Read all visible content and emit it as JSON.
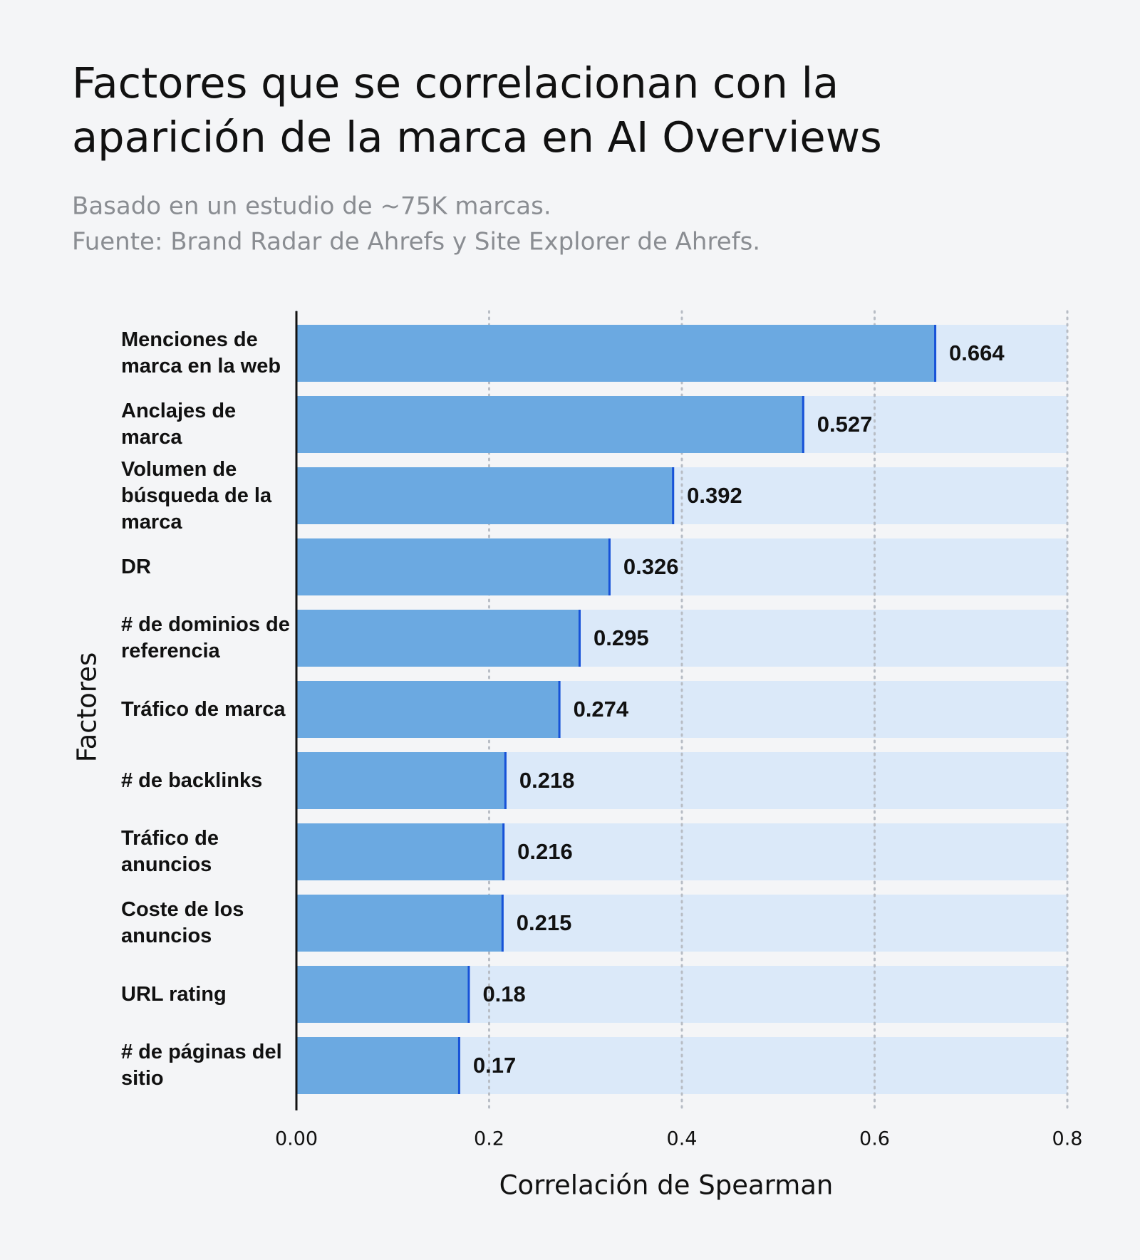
{
  "chart_data": {
    "type": "barh",
    "title": [
      "Factores que se correlacionan con la",
      "aparición de la marca en AI Overviews"
    ],
    "subtitle": [
      "Basado en un estudio de ~75K marcas.",
      "Fuente: Brand Radar de Ahrefs y Site Explorer de Ahrefs."
    ],
    "xlabel": "Correlación de Spearman",
    "ylabel": "Factores",
    "categories": [
      "Menciones de marca en la web",
      "Anclajes de marca",
      "Volumen de búsqueda de la marca",
      "DR",
      "# de dominios de referencia",
      "Tráfico de marca",
      "# de backlinks",
      "Tráfico de anuncios",
      "Coste de los anuncios",
      "URL rating",
      "# de páginas del sitio"
    ],
    "values": [
      0.664,
      0.527,
      0.392,
      0.326,
      0.295,
      0.274,
      0.218,
      0.216,
      0.215,
      0.18,
      0.17
    ],
    "color": "#6ba9e1",
    "track_color": "#dbe9f9",
    "edge_color": "#1752d8",
    "xlim": [
      0,
      0.8
    ],
    "xticks": [
      {
        "value": 0,
        "label": "0.00"
      },
      0.2,
      0.4,
      0.6,
      0.8
    ],
    "grid": true
  }
}
